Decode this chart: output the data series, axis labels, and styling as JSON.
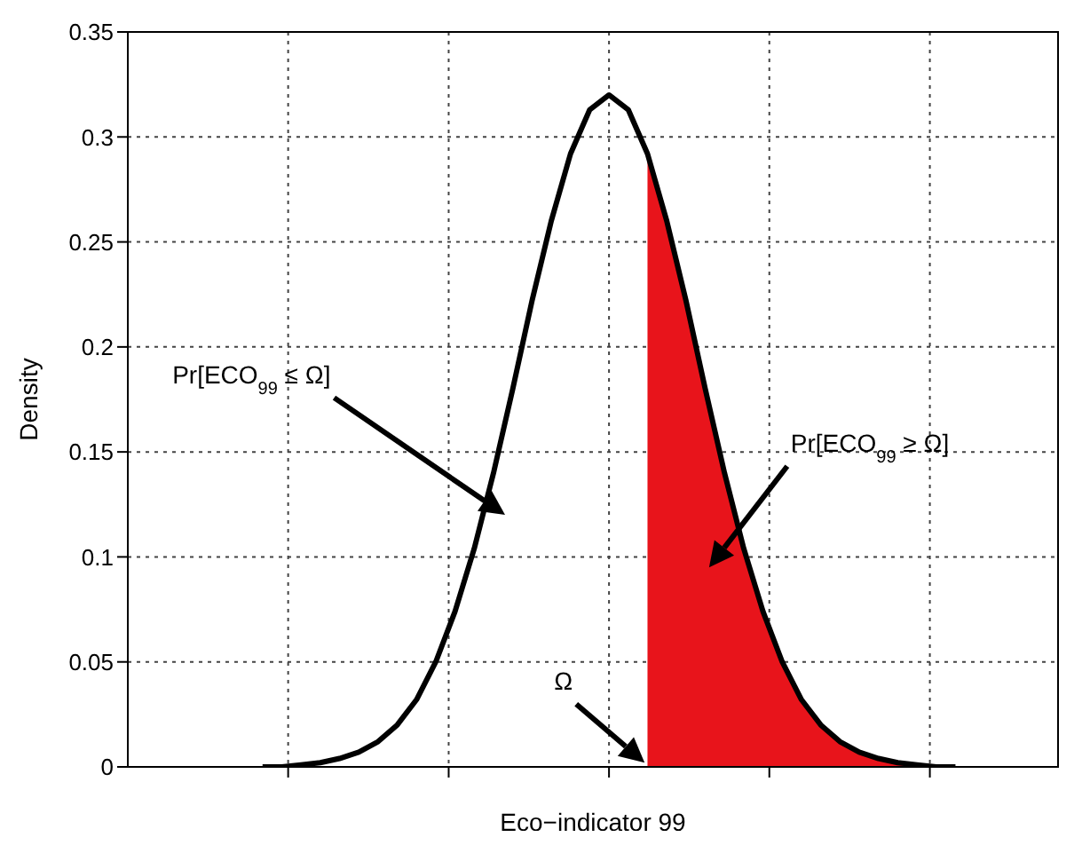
{
  "chart_data": {
    "type": "line",
    "xlabel": "Eco−indicator 99",
    "ylabel": "Density",
    "categories": [
      null,
      null,
      null,
      null,
      null,
      null,
      null,
      null,
      null,
      null,
      null,
      null,
      null,
      null,
      null,
      null,
      null,
      null,
      null,
      null,
      null,
      null,
      null,
      null,
      null,
      null,
      null,
      null,
      null,
      null,
      null,
      null,
      null,
      null,
      null,
      null,
      null
    ],
    "ylim": [
      0,
      0.35
    ],
    "yticks": [
      0,
      0.05,
      0.1,
      0.15,
      0.2,
      0.25,
      0.3,
      0.35
    ],
    "tick_labels": "y",
    "grid": true,
    "marker": "none",
    "line_style": "solid",
    "series": [
      {
        "color": "#000000",
        "values": [
          0,
          0,
          0.001,
          0.002,
          0.004,
          0.007,
          0.012,
          0.02,
          0.032,
          0.05,
          0.074,
          0.104,
          0.14,
          0.18,
          0.222,
          0.26,
          0.292,
          0.313,
          0.32,
          0.313,
          0.292,
          0.26,
          0.222,
          0.18,
          0.14,
          0.104,
          0.074,
          0.05,
          0.032,
          0.02,
          0.012,
          0.007,
          0.004,
          0.002,
          0.001,
          0,
          0
        ]
      },
      {
        "type": "area",
        "color": "#e8141b",
        "values": [
          null,
          null,
          null,
          null,
          null,
          null,
          null,
          null,
          null,
          null,
          null,
          null,
          null,
          null,
          null,
          null,
          null,
          null,
          null,
          null,
          0.292,
          0.26,
          0.222,
          0.18,
          0.14,
          0.104,
          0.074,
          0.05,
          0.032,
          0.02,
          0.012,
          0.007,
          0.004,
          0.002,
          0.001,
          0,
          0
        ]
      }
    ],
    "annotations": [
      "Pr[ECO$_{99}$ ≤ Ω]",
      "Pr[ECO$_{99}$ ≥ Ω]",
      "Ω"
    ]
  }
}
